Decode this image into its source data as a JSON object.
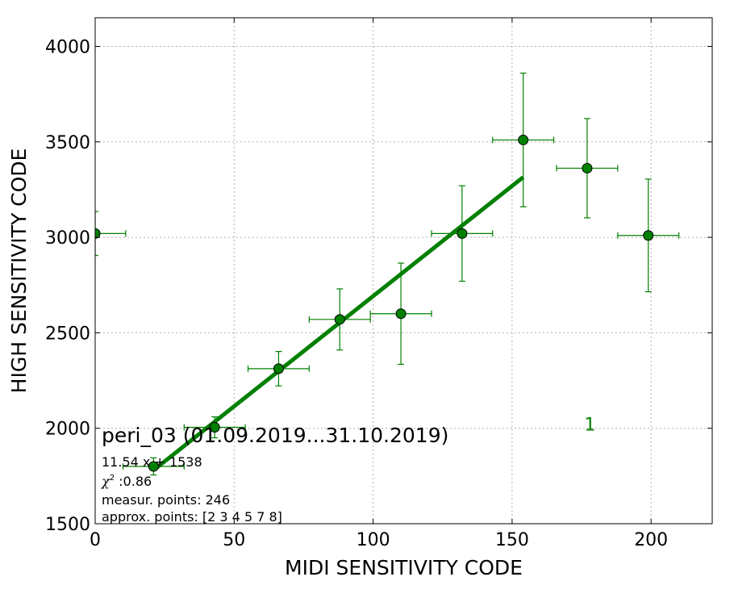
{
  "chart_data": {
    "type": "scatter",
    "xlabel": "MIDI SENSITIVITY CODE",
    "ylabel": "HIGH SENSITIVITY CODE",
    "xlim": [
      0,
      222
    ],
    "ylim": [
      1500,
      4150
    ],
    "xticks": [
      0,
      50,
      100,
      150,
      200
    ],
    "yticks": [
      1500,
      2000,
      2500,
      3000,
      3500,
      4000
    ],
    "grid": true,
    "colors": {
      "points": "#008000",
      "fit": "#008000",
      "errorbars": "#008000",
      "label": "#008000"
    },
    "points": [
      {
        "x": 0,
        "y": 3020,
        "xerr": 11,
        "yerr": 115,
        "approx": false
      },
      {
        "x": 21,
        "y": 1800,
        "xerr": 11,
        "yerr": 45,
        "approx": true
      },
      {
        "x": 43,
        "y": 2005,
        "xerr": 11,
        "yerr": 55,
        "approx": true
      },
      {
        "x": 66,
        "y": 2312,
        "xerr": 11,
        "yerr": 90,
        "approx": true
      },
      {
        "x": 88,
        "y": 2570,
        "xerr": 11,
        "yerr": 160,
        "approx": true
      },
      {
        "x": 110,
        "y": 2600,
        "xerr": 11,
        "yerr": 265,
        "approx": false
      },
      {
        "x": 132,
        "y": 3020,
        "xerr": 11,
        "yerr": 250,
        "approx": true
      },
      {
        "x": 154,
        "y": 3510,
        "xerr": 11,
        "yerr": 350,
        "approx": true
      },
      {
        "x": 177,
        "y": 3362,
        "xerr": 11,
        "yerr": 260,
        "approx": false
      },
      {
        "x": 199,
        "y": 3010,
        "xerr": 11,
        "yerr": 295,
        "approx": false
      }
    ],
    "fit": {
      "slope": 11.54,
      "intercept": 1538,
      "x_range": [
        21,
        154
      ]
    },
    "annotations": {
      "title": "peri_03 (01.09.2019...31.10.2019)",
      "equation": "11.54 x + 1538",
      "chi2_symbol": "χ",
      "chi2_exp": "2",
      "chi2_value": " :0.86",
      "measur_points": "measur. points: 246",
      "approx_points": "approx. points: [2 3 4 5 7 8]",
      "marker": "1",
      "marker_pos": {
        "x": 178,
        "y": 2005
      }
    }
  }
}
